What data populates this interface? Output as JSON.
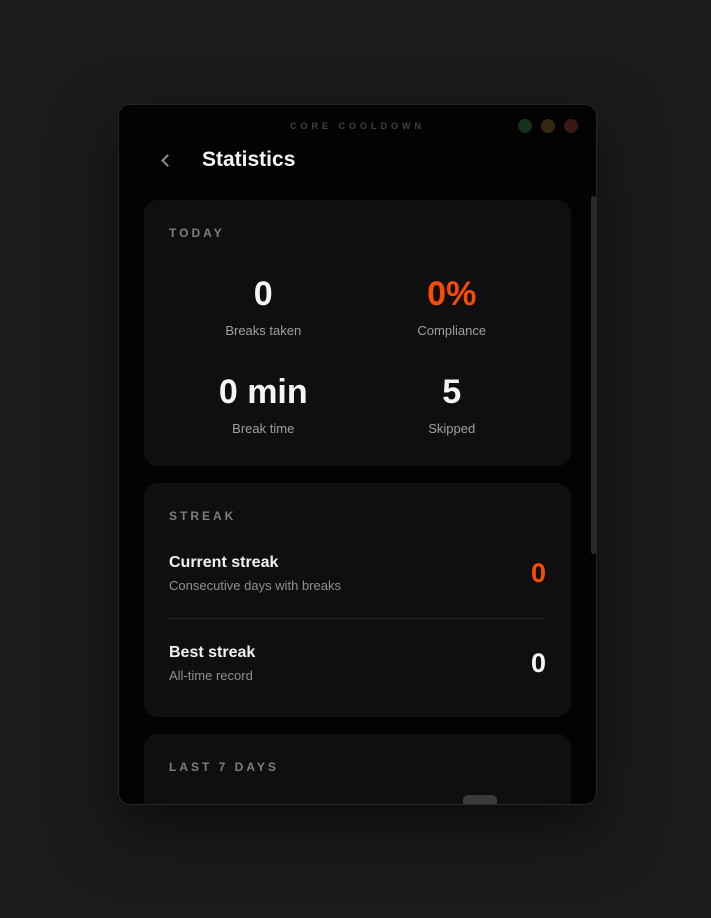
{
  "window": {
    "titlebar": {
      "app_title": "CORE COOLDOWN",
      "controls": [
        "green",
        "yellow",
        "red"
      ]
    },
    "header": {
      "title": "Statistics"
    }
  },
  "today": {
    "section_title": "TODAY",
    "stats": [
      {
        "value": "0",
        "label": "Breaks taken",
        "value_color": "#f5f5f5"
      },
      {
        "value": "0%",
        "label": "Compliance",
        "value_color": "#fb4b00"
      },
      {
        "value": "0 min",
        "label": "Break time",
        "value_color": "#f5f5f5"
      },
      {
        "value": "5",
        "label": "Skipped",
        "value_color": "#f5f5f5"
      }
    ]
  },
  "streak": {
    "section_title": "STREAK",
    "rows": [
      {
        "title": "Current streak",
        "subtitle": "Consecutive days with breaks",
        "value": "0",
        "value_color": "#fb4b00"
      },
      {
        "title": "Best streak",
        "subtitle": "All-time record",
        "value": "0",
        "value_color": "#f5f5f5"
      }
    ]
  },
  "last7days": {
    "section_title": "LAST 7 DAYS"
  },
  "colors": {
    "page_background": "#1b1b1b",
    "window_background": "#030303",
    "card_background": "#0f0f0f",
    "accent_orange": "#fb4b00",
    "primary_text": "#f5f5f5",
    "secondary_text": "#a0a0a0",
    "traffic_light_green": "#15301b",
    "traffic_light_yellow": "#332810",
    "traffic_light_red": "#3a1715"
  }
}
